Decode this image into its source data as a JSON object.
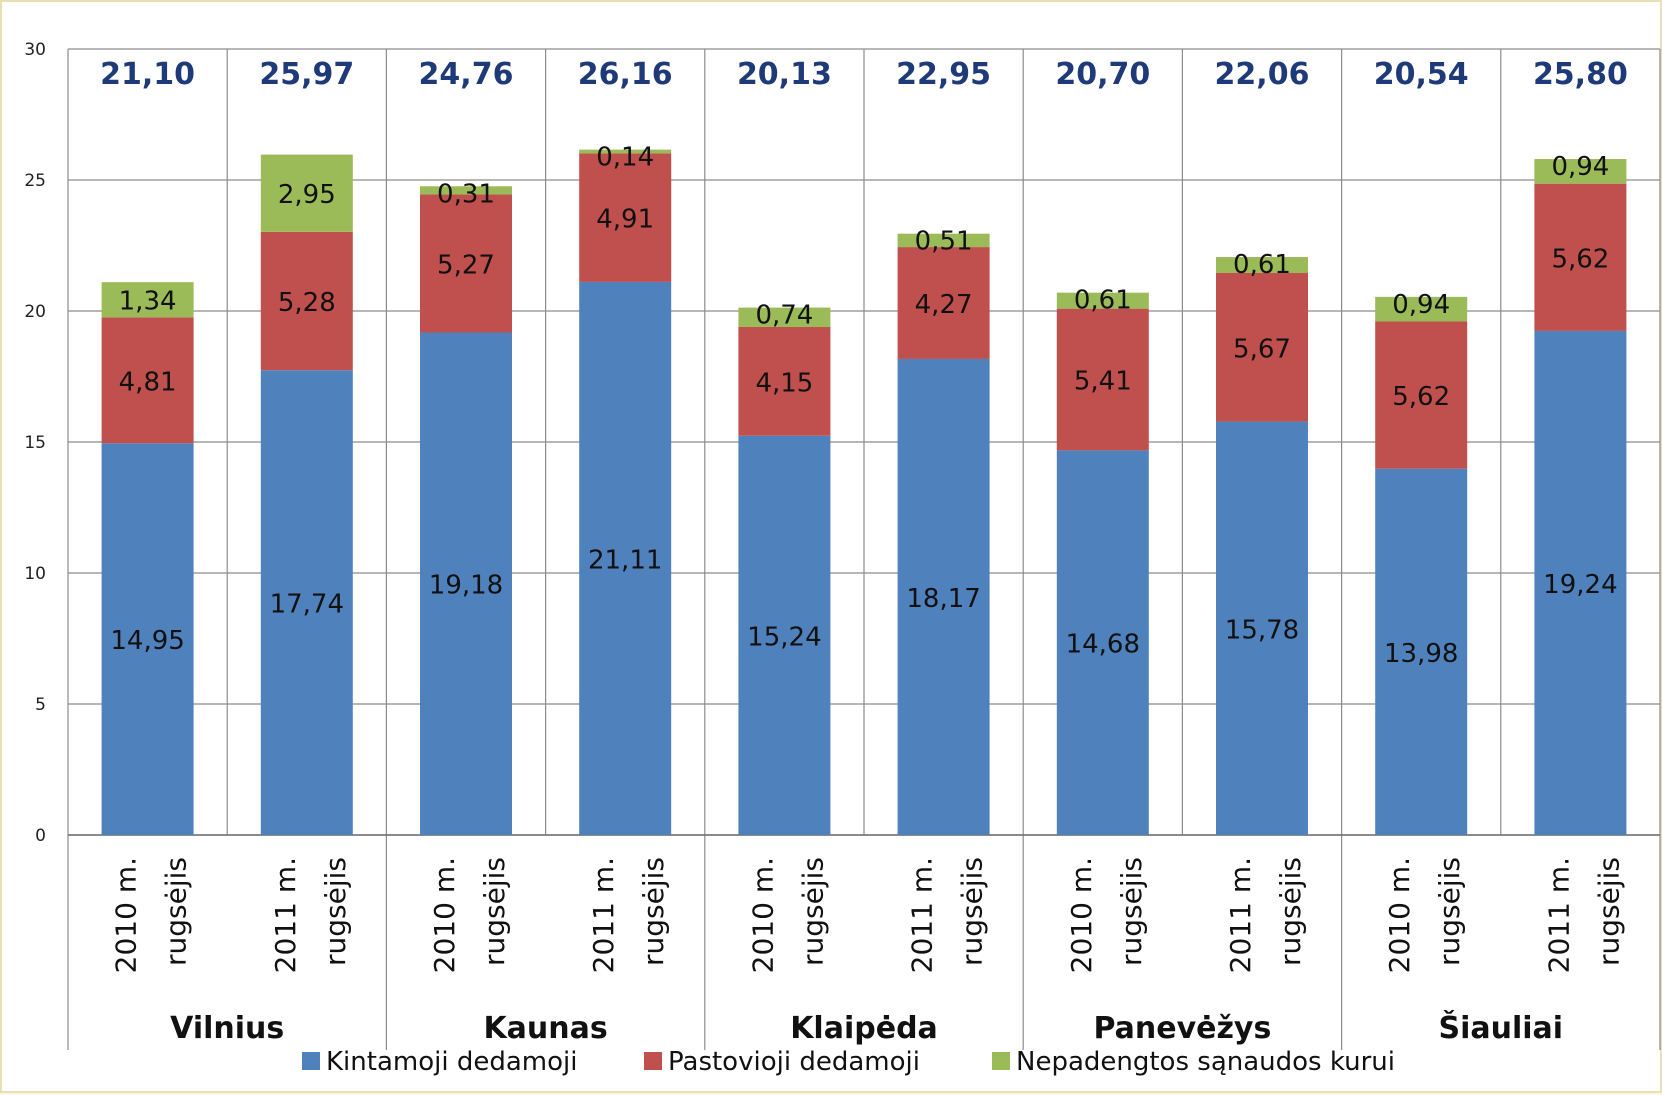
{
  "chart_data": {
    "type": "bar",
    "stacked": true,
    "ylim": [
      0,
      30
    ],
    "yticks": [
      "0",
      "5",
      "10",
      "15",
      "20",
      "25",
      "30"
    ],
    "grid": true,
    "legend_position": "bottom",
    "groups": [
      {
        "name": "Vilnius",
        "categories": [
          [
            "2010 m.",
            "rugsėjis"
          ],
          [
            "2011 m.",
            "rugsėjis"
          ]
        ]
      },
      {
        "name": "Kaunas",
        "categories": [
          [
            "2010 m.",
            "rugsėjis"
          ],
          [
            "2011 m.",
            "rugsėjis"
          ]
        ]
      },
      {
        "name": "Klaipėda",
        "categories": [
          [
            "2010 m.",
            "rugsėjis"
          ],
          [
            "2011 m.",
            "rugsėjis"
          ]
        ]
      },
      {
        "name": "Panevėžys",
        "categories": [
          [
            "2010 m.",
            "rugsėjis"
          ],
          [
            "2011 m.",
            "rugsėjis"
          ]
        ]
      },
      {
        "name": "Šiauliai",
        "categories": [
          [
            "2010 m.",
            "rugsėjis"
          ],
          [
            "2011 m.",
            "rugsėjis"
          ]
        ]
      }
    ],
    "totals": [
      "21,10",
      "25,97",
      "24,76",
      "26,16",
      "20,13",
      "22,95",
      "20,70",
      "22,06",
      "20,54",
      "25,80"
    ],
    "series": [
      {
        "name": "Kintamoji dedamoji",
        "color": "#4f81bd",
        "values": [
          14.95,
          17.74,
          19.18,
          21.11,
          15.24,
          18.17,
          14.68,
          15.78,
          13.98,
          19.24
        ],
        "labels": [
          "14,95",
          "17,74",
          "19,18",
          "21,11",
          "15,24",
          "18,17",
          "14,68",
          "15,78",
          "13,98",
          "19,24"
        ]
      },
      {
        "name": "Pastovioji dedamoji",
        "color": "#c0504d",
        "values": [
          4.81,
          5.28,
          5.27,
          4.91,
          4.15,
          4.27,
          5.41,
          5.67,
          5.62,
          5.62
        ],
        "labels": [
          "4,81",
          "5,28",
          "5,27",
          "4,91",
          "4,15",
          "4,27",
          "5,41",
          "5,67",
          "5,62",
          "5,62"
        ]
      },
      {
        "name": "Nepadengtos sąnaudos kurui",
        "color": "#9bbb59",
        "values": [
          1.34,
          2.95,
          0.31,
          0.14,
          0.74,
          0.51,
          0.61,
          0.61,
          0.94,
          0.94
        ],
        "labels": [
          "1,34",
          "2,95",
          "0,31",
          "0,14",
          "0,74",
          "0,51",
          "0,61",
          "0,61",
          "0,94",
          "0,94"
        ]
      }
    ]
  }
}
